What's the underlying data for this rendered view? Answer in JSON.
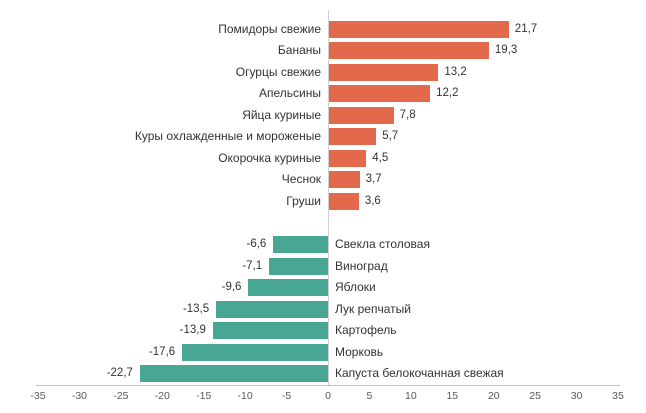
{
  "chart_data": {
    "type": "bar",
    "orientation": "horizontal",
    "title": "",
    "xlabel": "",
    "ylabel": "",
    "xlim": [
      -35,
      35
    ],
    "x_tick_step": 5,
    "x_tick_labels": [
      "-35",
      "-30",
      "-25",
      "-20",
      "-15",
      "-10",
      "-5",
      "0",
      "5",
      "10",
      "15",
      "20",
      "25",
      "30",
      "35"
    ],
    "grid": "zero-line-only",
    "legend": "none",
    "decimal_separator": ",",
    "group_gap_rows": 1,
    "groups": [
      {
        "name": "price-increase",
        "color": "#e2694b",
        "items": [
          {
            "label": "Помидоры свежие",
            "value": 21.7,
            "display": "21,7"
          },
          {
            "label": "Бананы",
            "value": 19.3,
            "display": "19,3"
          },
          {
            "label": "Огурцы свежие",
            "value": 13.2,
            "display": "13,2"
          },
          {
            "label": "Апельсины",
            "value": 12.2,
            "display": "12,2"
          },
          {
            "label": "Яйца куриные",
            "value": 7.8,
            "display": "7,8"
          },
          {
            "label": "Куры охлажденные и мороженые",
            "value": 5.7,
            "display": "5,7"
          },
          {
            "label": "Окорочка куриные",
            "value": 4.5,
            "display": "4,5"
          },
          {
            "label": "Чеснок",
            "value": 3.7,
            "display": "3,7"
          },
          {
            "label": "Груши",
            "value": 3.6,
            "display": "3,6"
          }
        ]
      },
      {
        "name": "price-decrease",
        "color": "#47a694",
        "items": [
          {
            "label": "Свекла столовая",
            "value": -6.6,
            "display": "-6,6"
          },
          {
            "label": "Виноград",
            "value": -7.1,
            "display": "-7,1"
          },
          {
            "label": "Яблоки",
            "value": -9.6,
            "display": "-9,6"
          },
          {
            "label": "Лук репчатый",
            "value": -13.5,
            "display": "-13,5"
          },
          {
            "label": "Картофель",
            "value": -13.9,
            "display": "-13,9"
          },
          {
            "label": "Морковь",
            "value": -17.6,
            "display": "-17,6"
          },
          {
            "label": "Капуста белокочанная свежая",
            "value": -22.7,
            "display": "-22,7"
          }
        ]
      }
    ]
  }
}
